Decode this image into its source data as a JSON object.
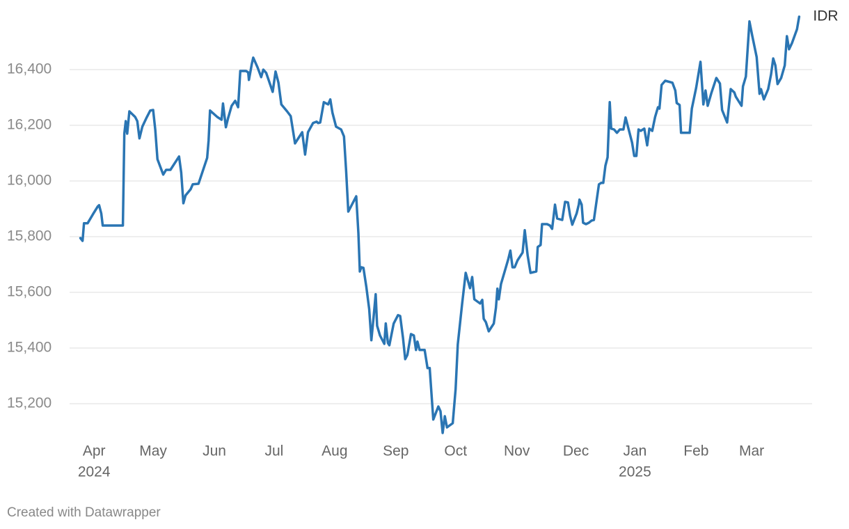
{
  "chart_data": {
    "type": "line",
    "credit": "Created with Datawrapper",
    "xlim": [
      2024.215,
      2025.246
    ],
    "xticks": [
      {
        "value": 2024.249,
        "label": "Apr",
        "sublabel": "2024"
      },
      {
        "value": 2024.331,
        "label": "May"
      },
      {
        "value": 2024.416,
        "label": "Jun"
      },
      {
        "value": 2024.499,
        "label": "Jul"
      },
      {
        "value": 2024.583,
        "label": "Aug"
      },
      {
        "value": 2024.668,
        "label": "Sep"
      },
      {
        "value": 2024.751,
        "label": "Oct"
      },
      {
        "value": 2024.836,
        "label": "Nov"
      },
      {
        "value": 2024.918,
        "label": "Dec"
      },
      {
        "value": 2025.0,
        "label": "Jan",
        "sublabel": "2025"
      },
      {
        "value": 2025.085,
        "label": "Feb"
      },
      {
        "value": 2025.162,
        "label": "Mar"
      }
    ],
    "ylim": [
      15085,
      16600
    ],
    "yticks": [
      {
        "value": 15200,
        "label": "15,200"
      },
      {
        "value": 15400,
        "label": "15,400"
      },
      {
        "value": 15600,
        "label": "15,600"
      },
      {
        "value": 15800,
        "label": "15,800"
      },
      {
        "value": 16000,
        "label": "16,000"
      },
      {
        "value": 16200,
        "label": "16,200"
      },
      {
        "value": 16400,
        "label": "16,400"
      }
    ],
    "grid": true,
    "x": [
      2024.23,
      2024.233,
      2024.235,
      2024.24,
      2024.248,
      2024.254,
      2024.256,
      2024.259,
      2024.261,
      2024.289,
      2024.291,
      2024.293,
      2024.295,
      2024.298,
      2024.306,
      2024.309,
      2024.312,
      2024.316,
      2024.322,
      2024.327,
      2024.331,
      2024.334,
      2024.337,
      2024.345,
      2024.349,
      2024.355,
      2024.362,
      2024.367,
      2024.37,
      2024.373,
      2024.376,
      2024.383,
      2024.386,
      2024.394,
      2024.406,
      2024.408,
      2024.41,
      2024.42,
      2024.426,
      2024.428,
      2024.432,
      2024.435,
      2024.44,
      2024.445,
      2024.449,
      2024.452,
      2024.46,
      2024.463,
      2024.464,
      2024.468,
      2024.47,
      2024.476,
      2024.481,
      2024.484,
      2024.488,
      2024.492,
      2024.497,
      2024.501,
      2024.505,
      2024.509,
      2024.517,
      2024.522,
      2024.528,
      2024.538,
      2024.542,
      2024.546,
      2024.553,
      2024.558,
      2024.56,
      2024.563,
      2024.568,
      2024.574,
      2024.577,
      2024.58,
      2024.585,
      2024.592,
      2024.596,
      2024.599,
      2024.602,
      2024.607,
      2024.613,
      2024.616,
      2024.618,
      2024.62,
      2024.623,
      2024.627,
      2024.631,
      2024.634,
      2024.637,
      2024.64,
      2024.642,
      2024.646,
      2024.652,
      2024.654,
      2024.657,
      2024.659,
      2024.665,
      2024.671,
      2024.674,
      2024.678,
      2024.681,
      2024.684,
      2024.689,
      2024.693,
      2024.696,
      2024.698,
      2024.701,
      2024.708,
      2024.712,
      2024.715,
      2024.72,
      2024.724,
      2024.727,
      2024.73,
      2024.733,
      2024.736,
      2024.739,
      2024.747,
      2024.751,
      2024.754,
      2024.76,
      2024.765,
      2024.771,
      2024.774,
      2024.777,
      2024.785,
      2024.788,
      2024.79,
      2024.793,
      2024.797,
      2024.804,
      2024.807,
      2024.809,
      2024.811,
      2024.814,
      2024.824,
      2024.827,
      2024.83,
      2024.833,
      2024.837,
      2024.844,
      2024.847,
      2024.851,
      2024.855,
      2024.863,
      2024.865,
      2024.869,
      2024.871,
      2024.878,
      2024.882,
      2024.885,
      2024.889,
      2024.892,
      2024.899,
      2024.903,
      2024.907,
      2024.91,
      2024.913,
      2024.919,
      2024.922,
      2024.923,
      2024.926,
      2024.928,
      2024.932,
      2024.936,
      2024.94,
      2024.943,
      2024.946,
      2024.95,
      2024.953,
      2024.956,
      2024.959,
      2024.962,
      2024.965,
      2024.967,
      2024.971,
      2024.975,
      2024.979,
      2024.984,
      2024.987,
      2024.991,
      2024.996,
      2024.999,
      2025.002,
      2025.005,
      2025.008,
      2025.013,
      2025.017,
      2025.02,
      2025.024,
      2025.028,
      2025.032,
      2025.034,
      2025.037,
      2025.042,
      2025.052,
      2025.056,
      2025.058,
      2025.062,
      2025.064,
      2025.076,
      2025.079,
      2025.085,
      2025.091,
      2025.095,
      2025.098,
      2025.101,
      2025.106,
      2025.113,
      2025.118,
      2025.121,
      2025.128,
      2025.133,
      2025.138,
      2025.14,
      2025.148,
      2025.15,
      2025.154,
      2025.159,
      2025.163,
      2025.169,
      2025.173,
      2025.175,
      2025.179,
      2025.185,
      2025.189,
      2025.192,
      2025.195,
      2025.198,
      2025.203,
      2025.208,
      2025.211,
      2025.214,
      2025.218,
      2025.225,
      2025.228
    ],
    "series": [
      {
        "name": "IDR",
        "color": "#2a75b3",
        "values": [
          15795,
          15785,
          15848,
          15848,
          15883,
          15908,
          15913,
          15883,
          15840,
          15840,
          16170,
          16215,
          16170,
          16250,
          16230,
          16215,
          16153,
          16195,
          16228,
          16253,
          16255,
          16183,
          16078,
          16023,
          16040,
          16040,
          16068,
          16088,
          16030,
          15920,
          15948,
          15970,
          15988,
          15990,
          16083,
          16145,
          16253,
          16230,
          16220,
          16278,
          16193,
          16225,
          16270,
          16288,
          16265,
          16395,
          16395,
          16390,
          16363,
          16420,
          16443,
          16408,
          16373,
          16400,
          16388,
          16358,
          16320,
          16393,
          16353,
          16275,
          16250,
          16233,
          16135,
          16175,
          16095,
          16175,
          16208,
          16213,
          16208,
          16210,
          16283,
          16275,
          16293,
          16245,
          16195,
          16185,
          16160,
          16035,
          15890,
          15915,
          15945,
          15813,
          15675,
          15690,
          15688,
          15620,
          15540,
          15428,
          15508,
          15593,
          15480,
          15445,
          15415,
          15488,
          15418,
          15410,
          15488,
          15518,
          15515,
          15435,
          15360,
          15375,
          15450,
          15445,
          15393,
          15423,
          15393,
          15393,
          15328,
          15328,
          15143,
          15170,
          15190,
          15173,
          15095,
          15155,
          15115,
          15130,
          15253,
          15413,
          15558,
          15670,
          15615,
          15655,
          15575,
          15560,
          15573,
          15505,
          15493,
          15460,
          15488,
          15545,
          15613,
          15575,
          15630,
          15718,
          15750,
          15690,
          15690,
          15715,
          15743,
          15823,
          15733,
          15670,
          15675,
          15763,
          15770,
          15845,
          15845,
          15840,
          15828,
          15915,
          15865,
          15860,
          15925,
          15923,
          15875,
          15843,
          15883,
          15915,
          15933,
          15915,
          15850,
          15845,
          15850,
          15858,
          15860,
          15915,
          15988,
          15993,
          15993,
          16055,
          16085,
          16283,
          16188,
          16185,
          16173,
          16185,
          16185,
          16228,
          16188,
          16138,
          16090,
          16090,
          16185,
          16180,
          16188,
          16128,
          16188,
          16180,
          16230,
          16265,
          16260,
          16345,
          16360,
          16353,
          16325,
          16280,
          16273,
          16173,
          16173,
          16260,
          16335,
          16428,
          16275,
          16325,
          16270,
          16315,
          16370,
          16350,
          16255,
          16210,
          16330,
          16318,
          16303,
          16270,
          16340,
          16375,
          16573,
          16520,
          16445,
          16313,
          16330,
          16293,
          16330,
          16383,
          16440,
          16415,
          16348,
          16370,
          16415,
          16520,
          16473,
          16495,
          16545,
          16590
        ]
      }
    ]
  }
}
